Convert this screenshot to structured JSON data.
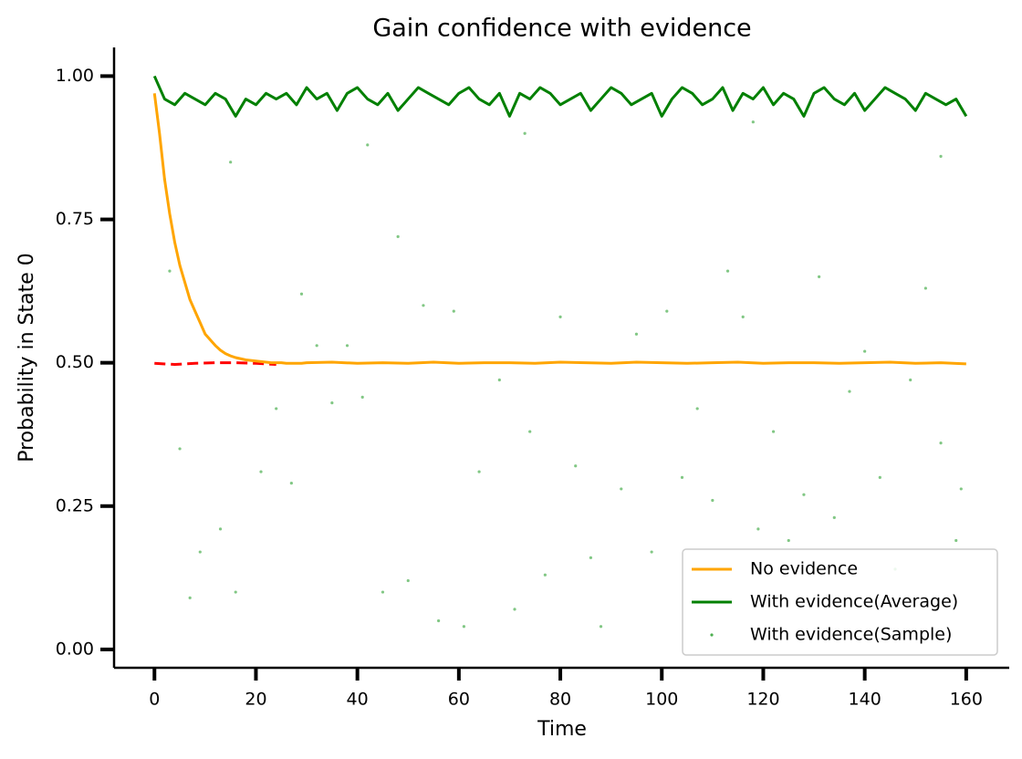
{
  "chart_data": {
    "type": "line",
    "title": "Gain confidence with evidence",
    "x_label": "Time",
    "y_label": "Probability in State 0",
    "xlim": [
      -7.6,
      168.3
    ],
    "ylim": [
      -0.032,
      1.05
    ],
    "xticks": [
      0,
      20,
      40,
      60,
      80,
      100,
      120,
      140,
      160
    ],
    "yticks": [
      {
        "value": 0,
        "label": "0.00"
      },
      {
        "value": 0.25,
        "label": "0.25"
      },
      {
        "value": 0.5,
        "label": "0.50"
      },
      {
        "value": 0.75,
        "label": "0.75"
      },
      {
        "value": 1,
        "label": "1.00"
      }
    ],
    "legend": "lower right",
    "series": [
      {
        "name": "With evidence(Sample)",
        "kind": "scatter",
        "color": "#4caf50",
        "x": [
          2,
          3,
          5,
          7,
          9,
          13,
          16,
          21,
          24,
          27,
          29,
          32,
          35,
          38,
          41,
          45,
          48,
          50,
          53,
          56,
          59,
          61,
          64,
          68,
          71,
          74,
          77,
          80,
          83,
          86,
          88,
          92,
          95,
          98,
          101,
          104,
          107,
          110,
          113,
          116,
          119,
          122,
          125,
          128,
          131,
          134,
          137,
          140,
          143,
          146,
          149,
          152,
          155,
          158,
          159,
          15,
          42,
          73,
          118,
          155
        ],
        "values": [
          0.82,
          0.66,
          0.35,
          0.09,
          0.17,
          0.21,
          0.1,
          0.31,
          0.42,
          0.29,
          0.62,
          0.53,
          0.43,
          0.53,
          0.44,
          0.1,
          0.72,
          0.12,
          0.6,
          0.05,
          0.59,
          0.04,
          0.31,
          0.47,
          0.07,
          0.38,
          0.13,
          0.58,
          0.32,
          0.16,
          0.04,
          0.28,
          0.55,
          0.17,
          0.59,
          0.3,
          0.42,
          0.26,
          0.66,
          0.58,
          0.21,
          0.38,
          0.19,
          0.27,
          0.65,
          0.23,
          0.45,
          0.52,
          0.3,
          0.14,
          0.47,
          0.63,
          0.36,
          0.19,
          0.28,
          0.85,
          0.88,
          0.9,
          0.92,
          0.86
        ]
      },
      {
        "kind": "dashed",
        "color": "#ff0000",
        "x": [
          0,
          4,
          8,
          12,
          16,
          20,
          24
        ],
        "values": [
          0.499,
          0.497,
          0.499,
          0.5,
          0.5,
          0.499,
          0.497
        ]
      },
      {
        "name": "No evidence",
        "kind": "line",
        "color": "#ffa500",
        "x": [
          0,
          1,
          2,
          3,
          4,
          5,
          6,
          7,
          8,
          9,
          10,
          11,
          12,
          13,
          14,
          15,
          16,
          17,
          18,
          19,
          20,
          21,
          22,
          23,
          24,
          25,
          26,
          27,
          28,
          29,
          30,
          35,
          40,
          45,
          50,
          55,
          60,
          65,
          70,
          75,
          80,
          85,
          90,
          95,
          100,
          105,
          110,
          115,
          120,
          125,
          130,
          135,
          140,
          145,
          150,
          155,
          160
        ],
        "values": [
          0.97,
          0.9,
          0.82,
          0.76,
          0.71,
          0.67,
          0.64,
          0.61,
          0.59,
          0.57,
          0.55,
          0.54,
          0.53,
          0.522,
          0.516,
          0.512,
          0.509,
          0.507,
          0.505,
          0.504,
          0.503,
          0.502,
          0.501,
          0.5,
          0.5,
          0.5,
          0.499,
          0.499,
          0.499,
          0.499,
          0.5,
          0.501,
          0.499,
          0.5,
          0.499,
          0.501,
          0.499,
          0.5,
          0.5,
          0.499,
          0.501,
          0.5,
          0.499,
          0.501,
          0.5,
          0.499,
          0.5,
          0.501,
          0.499,
          0.5,
          0.5,
          0.499,
          0.5,
          0.501,
          0.499,
          0.5,
          0.498
        ]
      },
      {
        "name": "With evidence(Average)",
        "kind": "line",
        "color": "#008000",
        "x": [
          0,
          2,
          4,
          6,
          8,
          10,
          12,
          14,
          16,
          18,
          20,
          22,
          24,
          26,
          28,
          30,
          32,
          34,
          36,
          38,
          40,
          42,
          44,
          46,
          48,
          50,
          52,
          54,
          56,
          58,
          60,
          62,
          64,
          66,
          68,
          70,
          72,
          74,
          76,
          78,
          80,
          82,
          84,
          86,
          88,
          90,
          92,
          94,
          96,
          98,
          100,
          102,
          104,
          106,
          108,
          110,
          112,
          114,
          116,
          118,
          120,
          122,
          124,
          126,
          128,
          130,
          132,
          134,
          136,
          138,
          140,
          142,
          144,
          146,
          148,
          150,
          152,
          154,
          156,
          158,
          160
        ],
        "values": [
          1.0,
          0.96,
          0.95,
          0.97,
          0.96,
          0.95,
          0.97,
          0.96,
          0.93,
          0.96,
          0.95,
          0.97,
          0.96,
          0.97,
          0.95,
          0.98,
          0.96,
          0.97,
          0.94,
          0.97,
          0.98,
          0.96,
          0.95,
          0.97,
          0.94,
          0.96,
          0.98,
          0.97,
          0.96,
          0.95,
          0.97,
          0.98,
          0.96,
          0.95,
          0.97,
          0.93,
          0.97,
          0.96,
          0.98,
          0.97,
          0.95,
          0.96,
          0.97,
          0.94,
          0.96,
          0.98,
          0.97,
          0.95,
          0.96,
          0.97,
          0.93,
          0.96,
          0.98,
          0.97,
          0.95,
          0.96,
          0.98,
          0.94,
          0.97,
          0.96,
          0.98,
          0.95,
          0.97,
          0.96,
          0.93,
          0.97,
          0.98,
          0.96,
          0.95,
          0.97,
          0.94,
          0.96,
          0.98,
          0.97,
          0.96,
          0.94,
          0.97,
          0.96,
          0.95,
          0.96,
          0.93
        ]
      }
    ]
  }
}
